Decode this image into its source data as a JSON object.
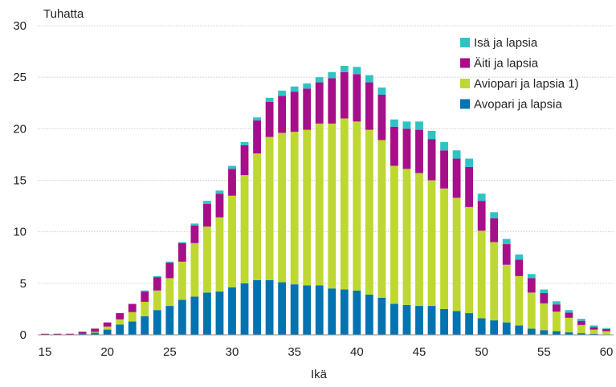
{
  "chart_data": {
    "type": "bar",
    "stacked": true,
    "unit_label": "Tuhatta",
    "xlabel": "Ikä",
    "ylabel": "",
    "ylim": [
      0,
      30
    ],
    "yticks": [
      0,
      5,
      10,
      15,
      20,
      25,
      30
    ],
    "xticks": [
      15,
      20,
      25,
      30,
      35,
      40,
      45,
      50,
      55,
      60
    ],
    "grid": "horizontal",
    "legend_position": "top-right",
    "x": [
      15,
      16,
      17,
      18,
      19,
      20,
      21,
      22,
      23,
      24,
      25,
      26,
      27,
      28,
      29,
      30,
      31,
      32,
      33,
      34,
      35,
      36,
      37,
      38,
      39,
      40,
      41,
      42,
      43,
      44,
      45,
      46,
      47,
      48,
      49,
      50,
      51,
      52,
      53,
      54,
      55,
      56,
      57,
      58,
      59,
      60
    ],
    "series": [
      {
        "name": "Avopari ja lapsia",
        "color": "#0073b0",
        "values": [
          0,
          0,
          0,
          0.1,
          0.2,
          0.5,
          1.0,
          1.3,
          1.8,
          2.4,
          2.8,
          3.4,
          3.7,
          4.1,
          4.2,
          4.6,
          5.0,
          5.3,
          5.3,
          5.1,
          4.9,
          4.8,
          4.8,
          4.5,
          4.4,
          4.3,
          3.9,
          3.6,
          3.0,
          2.9,
          2.8,
          2.8,
          2.5,
          2.3,
          2.1,
          1.6,
          1.4,
          1.2,
          0.9,
          0.6,
          0.45,
          0.35,
          0.25,
          0.15,
          0.1,
          0.05
        ]
      },
      {
        "name": "Aviopari ja lapsia 1)",
        "color": "#bed831",
        "values": [
          0,
          0,
          0,
          0,
          0.1,
          0.3,
          0.5,
          0.9,
          1.4,
          1.9,
          2.7,
          3.7,
          5.2,
          6.4,
          7.2,
          8.9,
          10.5,
          12.3,
          13.9,
          14.5,
          14.8,
          15.1,
          15.7,
          16.0,
          16.6,
          16.4,
          16.0,
          15.3,
          13.4,
          13.2,
          12.9,
          12.2,
          11.7,
          11.0,
          10.3,
          8.5,
          7.6,
          5.6,
          4.8,
          3.5,
          2.6,
          1.9,
          1.4,
          0.8,
          0.4,
          0.3
        ]
      },
      {
        "name": "Äiti ja lapsia",
        "color": "#a60f89",
        "values": [
          0.1,
          0.1,
          0.1,
          0.2,
          0.3,
          0.4,
          0.6,
          0.8,
          1.0,
          1.3,
          1.5,
          1.8,
          1.7,
          2.2,
          2.3,
          2.6,
          2.9,
          3.2,
          3.4,
          3.6,
          3.9,
          4.0,
          4.0,
          4.4,
          4.5,
          4.6,
          4.6,
          4.4,
          3.8,
          3.9,
          4.2,
          4.0,
          3.7,
          3.8,
          3.9,
          2.9,
          2.3,
          2.0,
          1.6,
          1.4,
          1.0,
          0.7,
          0.5,
          0.4,
          0.25,
          0.2
        ]
      },
      {
        "name": "Isä ja lapsia",
        "color": "#2ec4c4",
        "values": [
          0,
          0,
          0,
          0,
          0,
          0,
          0,
          0,
          0.1,
          0.1,
          0.1,
          0.1,
          0.2,
          0.3,
          0.3,
          0.3,
          0.3,
          0.3,
          0.4,
          0.5,
          0.5,
          0.5,
          0.5,
          0.6,
          0.6,
          0.7,
          0.7,
          0.7,
          0.7,
          0.7,
          0.8,
          0.8,
          0.8,
          0.8,
          0.8,
          0.7,
          0.6,
          0.5,
          0.5,
          0.4,
          0.35,
          0.3,
          0.25,
          0.2,
          0.15,
          0.1
        ]
      }
    ]
  }
}
